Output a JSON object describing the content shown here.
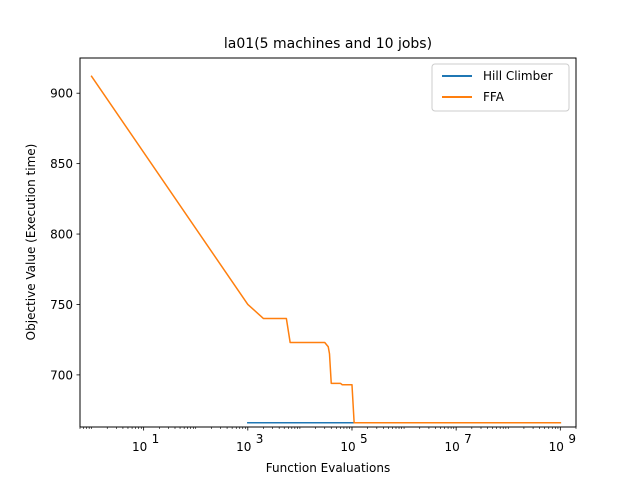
{
  "chart_data": {
    "type": "line",
    "title": "la01(5 machines and 10 jobs)",
    "xlabel": "Function Evaluations",
    "ylabel": "Objective Value (Execution time)",
    "xscale": "log",
    "xlim": [
      0.6,
      2000000000.0
    ],
    "ylim": [
      663,
      925
    ],
    "xticks": [
      {
        "value": 10,
        "base": "10",
        "exp": "1"
      },
      {
        "value": 1000,
        "base": "10",
        "exp": "3"
      },
      {
        "value": 100000,
        "base": "10",
        "exp": "5"
      },
      {
        "value": 10000000,
        "base": "10",
        "exp": "7"
      },
      {
        "value": 1000000000,
        "base": "10",
        "exp": "9"
      }
    ],
    "yticks": [
      {
        "value": 700,
        "label": "700"
      },
      {
        "value": 750,
        "label": "750"
      },
      {
        "value": 800,
        "label": "800"
      },
      {
        "value": 850,
        "label": "850"
      },
      {
        "value": 900,
        "label": "900"
      }
    ],
    "legend_position": "top-right",
    "grid": false,
    "series": [
      {
        "name": "Hill Climber",
        "color": "#1f77b4",
        "x": [
          1000,
          1000000000
        ],
        "y": [
          666,
          666
        ]
      },
      {
        "name": "FFA",
        "color": "#ff7f0e",
        "x": [
          1,
          1000,
          2000,
          5500,
          6500,
          30000,
          35000,
          37000,
          40000,
          60000,
          65000,
          100000,
          110000,
          130000,
          140000,
          150000,
          1000000000
        ],
        "y": [
          912,
          750,
          740,
          740,
          723,
          723,
          720,
          715,
          694,
          694,
          693,
          693,
          666,
          666,
          666,
          666,
          666
        ]
      }
    ]
  }
}
